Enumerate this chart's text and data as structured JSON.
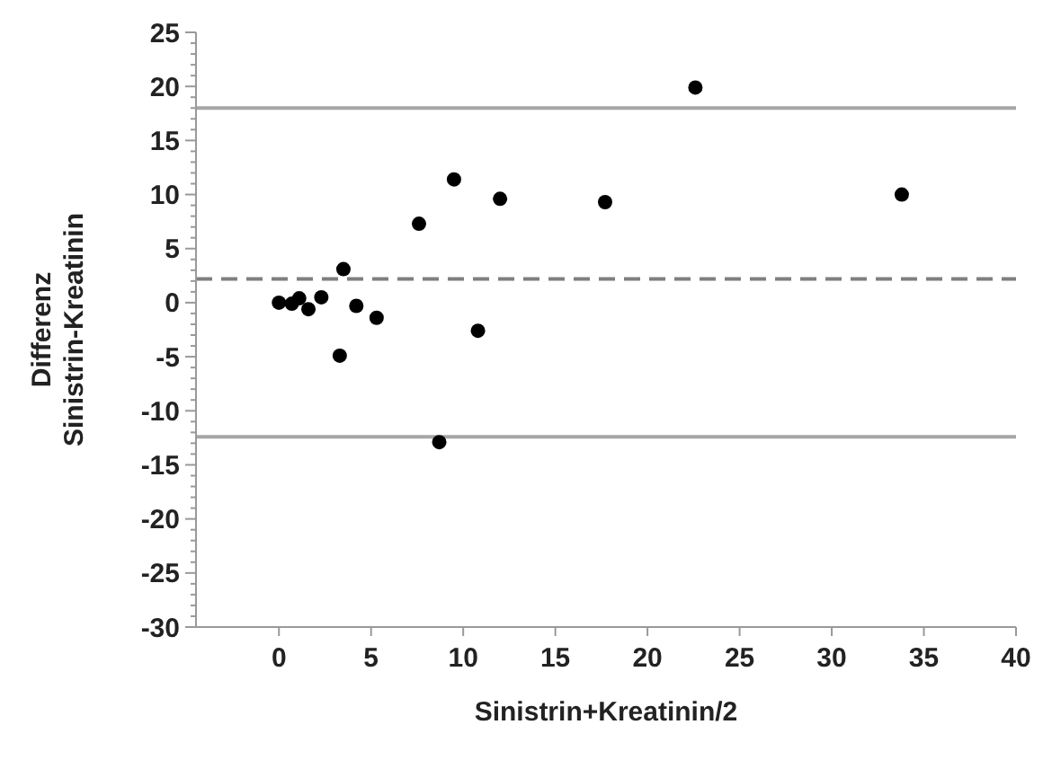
{
  "chart_data": {
    "type": "scatter",
    "xlabel": "Sinistrin+Kreatinin/2",
    "ylabel": "Differenz\nSinistrin-Kreatinin",
    "x": [
      0,
      0.7,
      1.1,
      1.6,
      2.3,
      3.3,
      3.5,
      4.2,
      5.3,
      7.6,
      8.7,
      9.5,
      10.8,
      12.0,
      17.7,
      22.6,
      33.8
    ],
    "series": [
      {
        "color": "#000000",
        "values": [
          0.0,
          -0.1,
          0.4,
          -0.6,
          0.5,
          -4.9,
          3.1,
          -0.3,
          -1.4,
          7.3,
          -12.9,
          11.4,
          -2.6,
          9.6,
          9.3,
          19.9,
          10.0
        ]
      }
    ],
    "marker": "circle",
    "grid": false,
    "xlim": [
      -4.5,
      40
    ],
    "xticks": [
      {
        "value": 0,
        "label": "0"
      },
      {
        "value": 5,
        "label": "5"
      },
      {
        "value": 10,
        "label": "10"
      },
      {
        "value": 15,
        "label": "15"
      },
      {
        "value": 20,
        "label": "20"
      },
      {
        "value": 25,
        "label": "25"
      },
      {
        "value": 30,
        "label": "30"
      },
      {
        "value": 35,
        "label": "35"
      },
      {
        "value": 40,
        "label": "40"
      }
    ],
    "ylim": [
      -30,
      25
    ],
    "yticks": [
      -30,
      {
        "value": -29,
        "label": null
      },
      {
        "value": -28,
        "label": null
      },
      {
        "value": -27,
        "label": null
      },
      {
        "value": -26,
        "label": null
      },
      -25,
      {
        "value": -24,
        "label": null
      },
      {
        "value": -23,
        "label": null
      },
      {
        "value": -22,
        "label": null
      },
      {
        "value": -21,
        "label": null
      },
      -20,
      {
        "value": -19,
        "label": null
      },
      {
        "value": -18,
        "label": null
      },
      {
        "value": -17,
        "label": null
      },
      {
        "value": -16,
        "label": null
      },
      -15,
      {
        "value": -14,
        "label": null
      },
      {
        "value": -13,
        "label": null
      },
      {
        "value": -12,
        "label": null
      },
      {
        "value": -11,
        "label": null
      },
      -10,
      {
        "value": -9,
        "label": null
      },
      {
        "value": -8,
        "label": null
      },
      {
        "value": -7,
        "label": null
      },
      {
        "value": -6,
        "label": null
      },
      -5,
      {
        "value": -4,
        "label": null
      },
      {
        "value": -3,
        "label": null
      },
      {
        "value": -2,
        "label": null
      },
      {
        "value": -1,
        "label": null
      },
      0,
      {
        "value": 1,
        "label": null
      },
      {
        "value": 2,
        "label": null
      },
      {
        "value": 3,
        "label": null
      },
      {
        "value": 4,
        "label": null
      },
      5,
      {
        "value": 6,
        "label": null
      },
      {
        "value": 7,
        "label": null
      },
      {
        "value": 8,
        "label": null
      },
      {
        "value": 9,
        "label": null
      },
      10,
      {
        "value": 11,
        "label": null
      },
      {
        "value": 12,
        "label": null
      },
      {
        "value": 13,
        "label": null
      },
      {
        "value": 14,
        "label": null
      },
      15,
      {
        "value": 16,
        "label": null
      },
      {
        "value": 17,
        "label": null
      },
      {
        "value": 18,
        "label": null
      },
      {
        "value": 19,
        "label": null
      },
      20,
      {
        "value": 21,
        "label": null
      },
      {
        "value": 22,
        "label": null
      },
      {
        "value": 23,
        "label": null
      },
      {
        "value": 24,
        "label": null
      },
      25
    ],
    "ref_lines": [
      {
        "axis": "y",
        "value": 18,
        "color": "#a6a6a6",
        "line_style": "solid"
      },
      {
        "axis": "y",
        "value": 2.2,
        "color": "#7f7f7f",
        "line_style": "dashed"
      },
      {
        "axis": "y",
        "value": -12.4,
        "color": "#a6a6a6",
        "line_style": "solid"
      }
    ]
  }
}
